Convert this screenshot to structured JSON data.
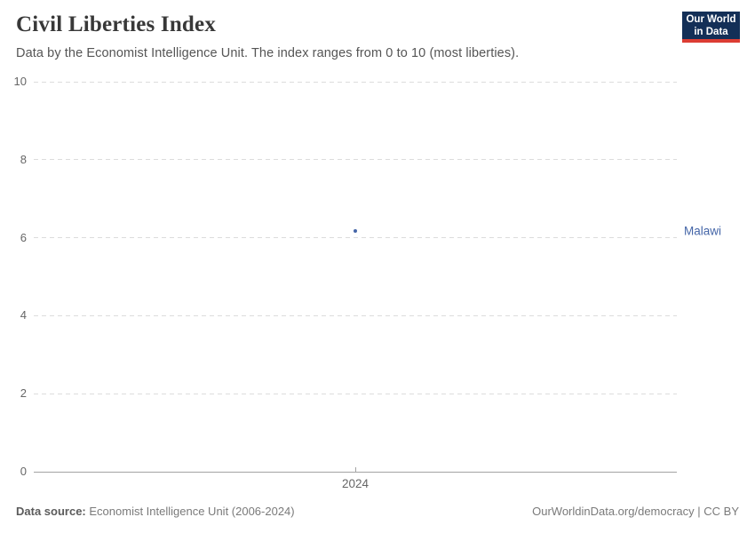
{
  "header": {
    "title": "Civil Liberties Index",
    "subtitle": "Data by the Economist Intelligence Unit. The index ranges from 0 to 10 (most liberties).",
    "logo": {
      "line1": "Our World",
      "line2": "in Data"
    }
  },
  "chart_data": {
    "type": "scatter",
    "title": "Civil Liberties Index",
    "x": [
      2024
    ],
    "categories": [
      "2024"
    ],
    "series": [
      {
        "name": "Malawi",
        "values": [
          6.18
        ]
      }
    ],
    "xlabel": "",
    "ylabel": "",
    "ylim": [
      0,
      10
    ],
    "yticks": [
      0,
      2,
      4,
      6,
      8,
      10
    ],
    "xticks": [
      "2024"
    ],
    "grid": "horizontal-dashed",
    "legend_position": "right-of-point"
  },
  "footer": {
    "datasource_label": "Data source:",
    "datasource_value": "Economist Intelligence Unit (2006-2024)",
    "credit": "OurWorldinData.org/democracy | CC BY"
  },
  "colors": {
    "point": "#4566a8",
    "grid": "#dcdcdc",
    "axis": "#a3a3a3",
    "logo_bg": "#132f57",
    "logo_red": "#dc3d33",
    "title_text": "#383838",
    "subtitle_text": "#555555",
    "tick_text": "#666666"
  }
}
